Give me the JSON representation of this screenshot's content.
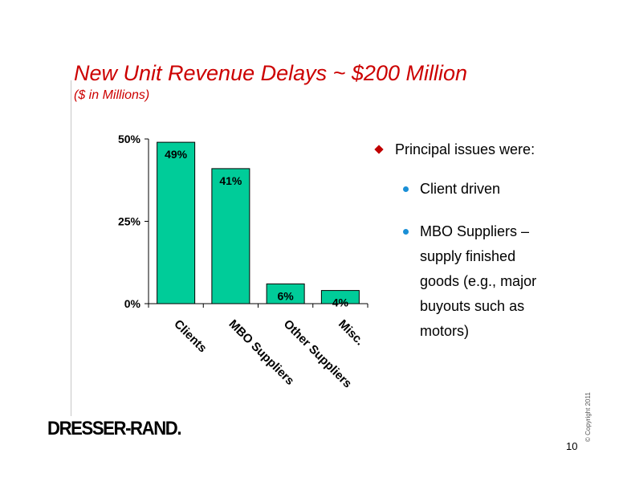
{
  "slide": {
    "title": "New Unit Revenue Delays ~ $200 Million",
    "subtitle": "($ in Millions)",
    "logo": "DRESSER-RAND.",
    "copyright": "© Copyright 2011",
    "page_number": "10"
  },
  "bullets": {
    "main": "Principal issues were:",
    "sub1": "Client driven",
    "sub2_lines": [
      "MBO Suppliers –",
      "supply finished",
      "goods (e.g., major",
      "buyouts such as",
      "motors)"
    ]
  },
  "colors": {
    "bar_fill": "#00cc99",
    "title": "#cc0000",
    "main_bullet": "#c00000",
    "sub_bullet": "#1a8fd6"
  },
  "chart_data": {
    "type": "bar",
    "categories": [
      "Clients",
      "MBO Suppliers",
      "Other Suppliers",
      "Misc."
    ],
    "values": [
      49,
      41,
      6,
      4
    ],
    "data_labels": [
      "49%",
      "41%",
      "6%",
      "4%"
    ],
    "y_ticks": [
      "0%",
      "25%",
      "50%"
    ],
    "ylim": [
      0,
      50
    ],
    "grid": false,
    "legend": false
  }
}
